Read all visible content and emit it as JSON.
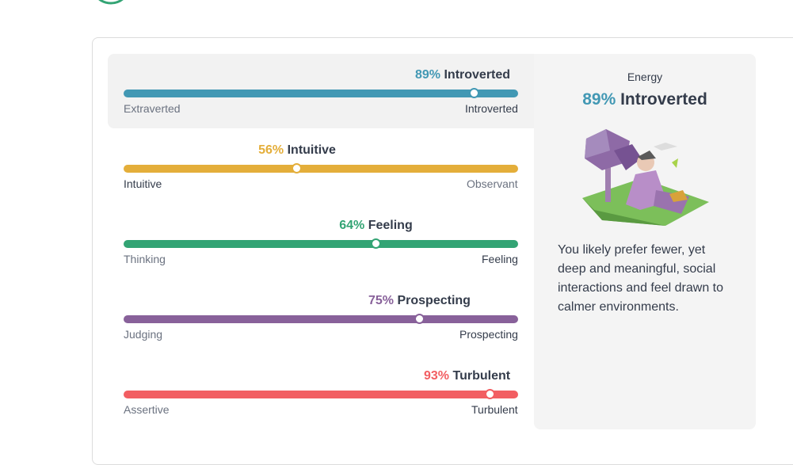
{
  "traits": [
    {
      "percent": 89,
      "percent_label": "89%",
      "trait": "Introverted",
      "left": "Extraverted",
      "right": "Introverted",
      "color": "#4298b4",
      "side": "right"
    },
    {
      "percent": 56,
      "percent_label": "56%",
      "trait": "Intuitive",
      "left": "Intuitive",
      "right": "Observant",
      "color": "#e4ae3a",
      "side": "left"
    },
    {
      "percent": 64,
      "percent_label": "64%",
      "trait": "Feeling",
      "left": "Thinking",
      "right": "Feeling",
      "color": "#33a474",
      "side": "right"
    },
    {
      "percent": 75,
      "percent_label": "75%",
      "trait": "Prospecting",
      "left": "Judging",
      "right": "Prospecting",
      "color": "#88619a",
      "side": "right"
    },
    {
      "percent": 93,
      "percent_label": "93%",
      "trait": "Turbulent",
      "left": "Assertive",
      "right": "Turbulent",
      "color": "#f25e62",
      "side": "right"
    }
  ],
  "active": 0,
  "panel": {
    "category": "Energy",
    "percent_label": "89%",
    "trait": "Introverted",
    "description": "You likely prefer fewer, yet deep and meaningful, social interactions and feel drawn to calmer environments."
  }
}
